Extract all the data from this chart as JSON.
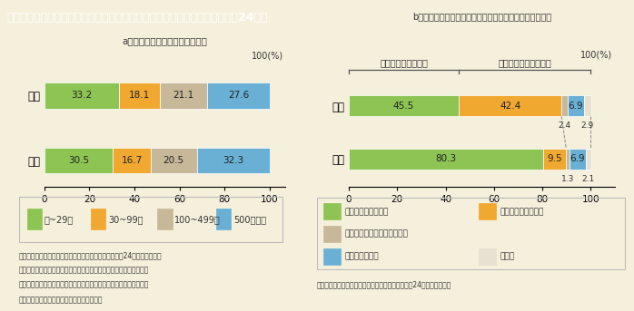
{
  "title": "第１－特－５図　従業者規模別及び雇用形態別の雇用の状況（男女別，平成24年）",
  "title_bg": "#7a6048",
  "title_color": "#ffffff",
  "bg_color": "#f5f0dc",
  "chart_a_title": "a．雇用者数の従業者規模別割合",
  "chart_b_title": "b．役員を除く雇用者における正規／非正規雇用者の割合",
  "chart_a": {
    "categories": [
      "女性",
      "男性"
    ],
    "series": [
      {
        "label": "１~29人",
        "color": "#8dc454",
        "values": [
          33.2,
          30.5
        ]
      },
      {
        "label": "30~99人",
        "color": "#f0a830",
        "values": [
          18.1,
          16.7
        ]
      },
      {
        "label": "100~499人",
        "color": "#c8b89a",
        "values": [
          21.1,
          20.5
        ]
      },
      {
        "label": "500人以上",
        "color": "#6ab0d4",
        "values": [
          27.6,
          32.3
        ]
      }
    ]
  },
  "chart_b": {
    "categories": [
      "女性",
      "男性"
    ],
    "series": [
      {
        "label": "正規の職員・従業員",
        "color": "#8dc454",
        "values": [
          45.5,
          80.3
        ]
      },
      {
        "label": "パート・アルバイト",
        "color": "#f0a830",
        "values": [
          42.4,
          9.5
        ]
      },
      {
        "label": "労働者派遣事業所の派遣社員",
        "color": "#c8b89a",
        "values": [
          2.4,
          1.3
        ]
      },
      {
        "label": "契約社員・嘱託",
        "color": "#6ab0d4",
        "values": [
          6.9,
          6.9
        ]
      },
      {
        "label": "その他",
        "color": "#e8e0d0",
        "values": [
          2.9,
          2.1
        ]
      }
    ]
  },
  "note_a": [
    "（備考）１．総務省「労働力調査（基本集計）」（平成24年）より作成。",
    "　　　　２．働いている事業所が属する企業（本店・支店・工場・出",
    "　　　　　　張所などを含めた企業全体）でふだん働いている従業者",
    "　　　　　　数の規模により区分している。"
  ],
  "note_b": "（備考）総務省「労働力調査（詳細集計）」（平成24年）より作成。"
}
